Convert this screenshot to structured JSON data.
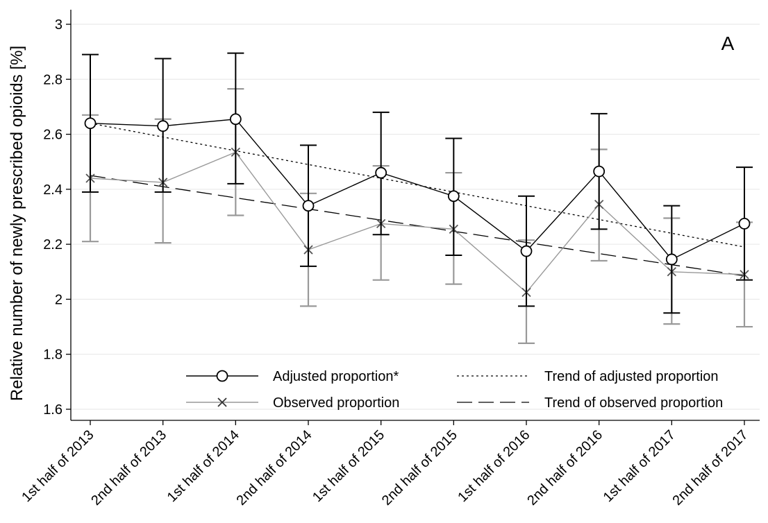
{
  "chart_data": {
    "type": "line",
    "panel_label": "A",
    "ylabel": "Relative number of newly prescribed opioids [%]",
    "xlabel": "",
    "ylim": [
      1.6,
      3.0
    ],
    "yticks": [
      1.6,
      1.8,
      2,
      2.2,
      2.4,
      2.6,
      2.8,
      3
    ],
    "ytick_labels": [
      "1.6",
      "1.8",
      "2",
      "2.2",
      "2.4",
      "2.6",
      "2.8",
      "3"
    ],
    "categories": [
      "1st half of 2013",
      "2nd half of 2013",
      "1st half of 2014",
      "2nd half of 2014",
      "1st half of 2015",
      "2nd half of 2015",
      "1st half of 2016",
      "2nd half of 2016",
      "1st half of 2017",
      "2nd half of 2017"
    ],
    "grid": true,
    "series": [
      {
        "name": "Adjusted proportion*",
        "marker": "circle",
        "color": "#000000",
        "values": [
          2.64,
          2.63,
          2.655,
          2.34,
          2.46,
          2.375,
          2.175,
          2.465,
          2.145,
          2.275
        ],
        "ci_lower": [
          2.39,
          2.39,
          2.42,
          2.12,
          2.235,
          2.16,
          1.975,
          2.255,
          1.95,
          2.07
        ],
        "ci_upper": [
          2.89,
          2.875,
          2.895,
          2.56,
          2.68,
          2.585,
          2.375,
          2.675,
          2.34,
          2.48
        ]
      },
      {
        "name": "Observed proportion",
        "marker": "x",
        "color": "#999999",
        "values": [
          2.44,
          2.425,
          2.535,
          2.18,
          2.275,
          2.255,
          2.025,
          2.345,
          2.1,
          2.09
        ],
        "ci_lower": [
          2.21,
          2.205,
          2.305,
          1.975,
          2.07,
          2.055,
          1.84,
          2.14,
          1.91,
          1.9
        ],
        "ci_upper": [
          2.67,
          2.655,
          2.765,
          2.385,
          2.485,
          2.46,
          2.215,
          2.545,
          2.295,
          2.28
        ]
      }
    ],
    "trends": [
      {
        "name": "Trend of adjusted proportion",
        "style": "dotted",
        "color": "#000000",
        "start": 2.64,
        "end": 2.19
      },
      {
        "name": "Trend of observed proportion",
        "style": "dashed",
        "color": "#000000",
        "start": 2.45,
        "end": 2.085
      }
    ],
    "legend": {
      "placement": "bottom-inside",
      "entries": [
        "Adjusted proportion*",
        "Trend of adjusted proportion",
        "Observed proportion",
        "Trend of observed proportion"
      ]
    }
  }
}
